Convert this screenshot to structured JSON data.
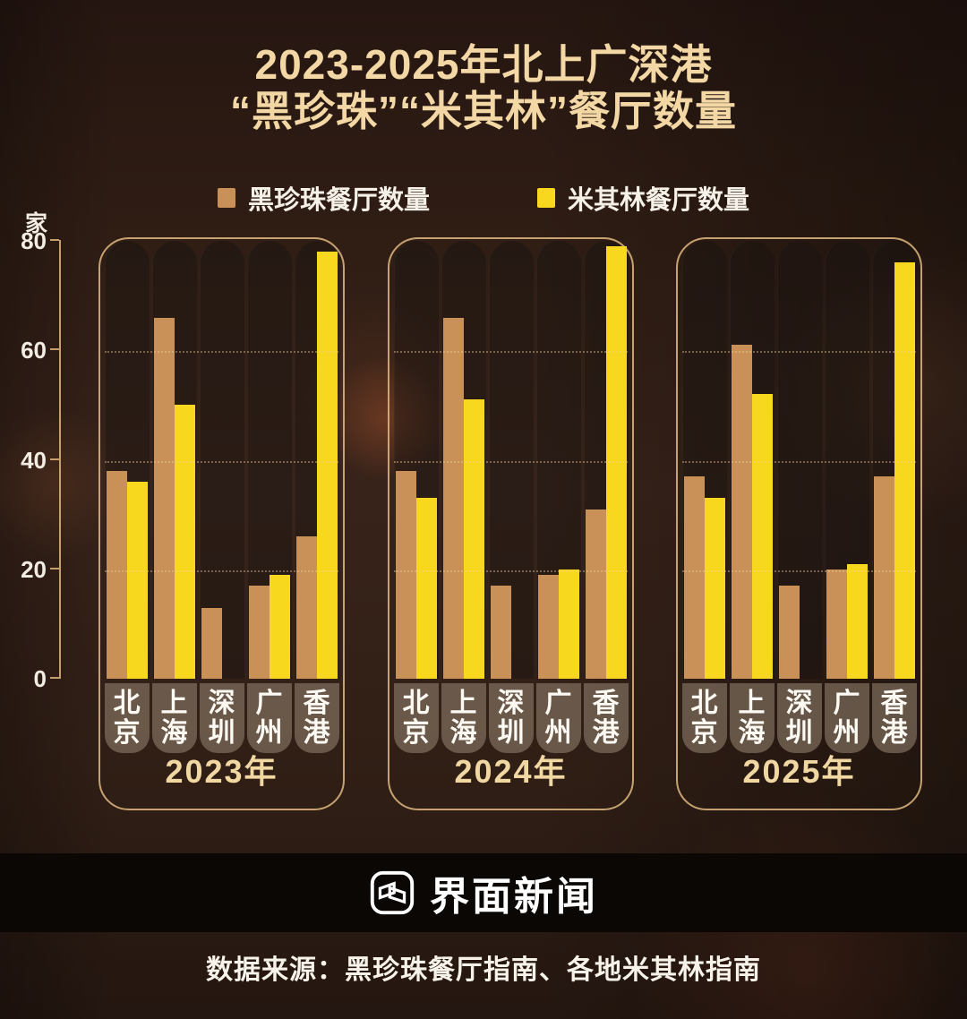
{
  "title": {
    "line1": "2023-2025年北上广深港",
    "line2": "“黑珍珠”“米其林”餐厅数量"
  },
  "legend": [
    {
      "label": "黑珍珠餐厅数量",
      "color": "#c99058"
    },
    {
      "label": "米其林餐厅数量",
      "color": "#f8d71f"
    }
  ],
  "y_axis": {
    "unit": "家",
    "ticks": [
      80,
      60,
      40,
      20,
      0
    ]
  },
  "chart_data": {
    "type": "bar",
    "title": "2023-2025年北上广深港“黑珍珠”“米其林”餐厅数量",
    "ylabel": "家",
    "ylim": [
      0,
      80
    ],
    "grid": "dotted horizontal at 20/40/60",
    "legend_position": "top",
    "categories": [
      "北京",
      "上海",
      "深圳",
      "广州",
      "香港"
    ],
    "groups": [
      {
        "year": "2023年",
        "series": [
          {
            "name": "黑珍珠餐厅数量",
            "color": "#c99058",
            "values": [
              38,
              66,
              13,
              17,
              26
            ]
          },
          {
            "name": "米其林餐厅数量",
            "color": "#f8d71f",
            "values": [
              36,
              50,
              null,
              19,
              78
            ]
          }
        ]
      },
      {
        "year": "2024年",
        "series": [
          {
            "name": "黑珍珠餐厅数量",
            "color": "#c99058",
            "values": [
              38,
              66,
              17,
              19,
              31
            ]
          },
          {
            "name": "米其林餐厅数量",
            "color": "#f8d71f",
            "values": [
              33,
              51,
              null,
              20,
              79
            ]
          }
        ]
      },
      {
        "year": "2025年",
        "series": [
          {
            "name": "黑珍珠餐厅数量",
            "color": "#c99058",
            "values": [
              37,
              61,
              17,
              20,
              37
            ]
          },
          {
            "name": "米其林餐厅数量",
            "color": "#f8d71f",
            "values": [
              33,
              52,
              null,
              21,
              76
            ]
          }
        ]
      }
    ]
  },
  "footer": {
    "brand": "界面新闻",
    "source": "数据来源：黑珍珠餐厅指南、各地米其林指南"
  }
}
